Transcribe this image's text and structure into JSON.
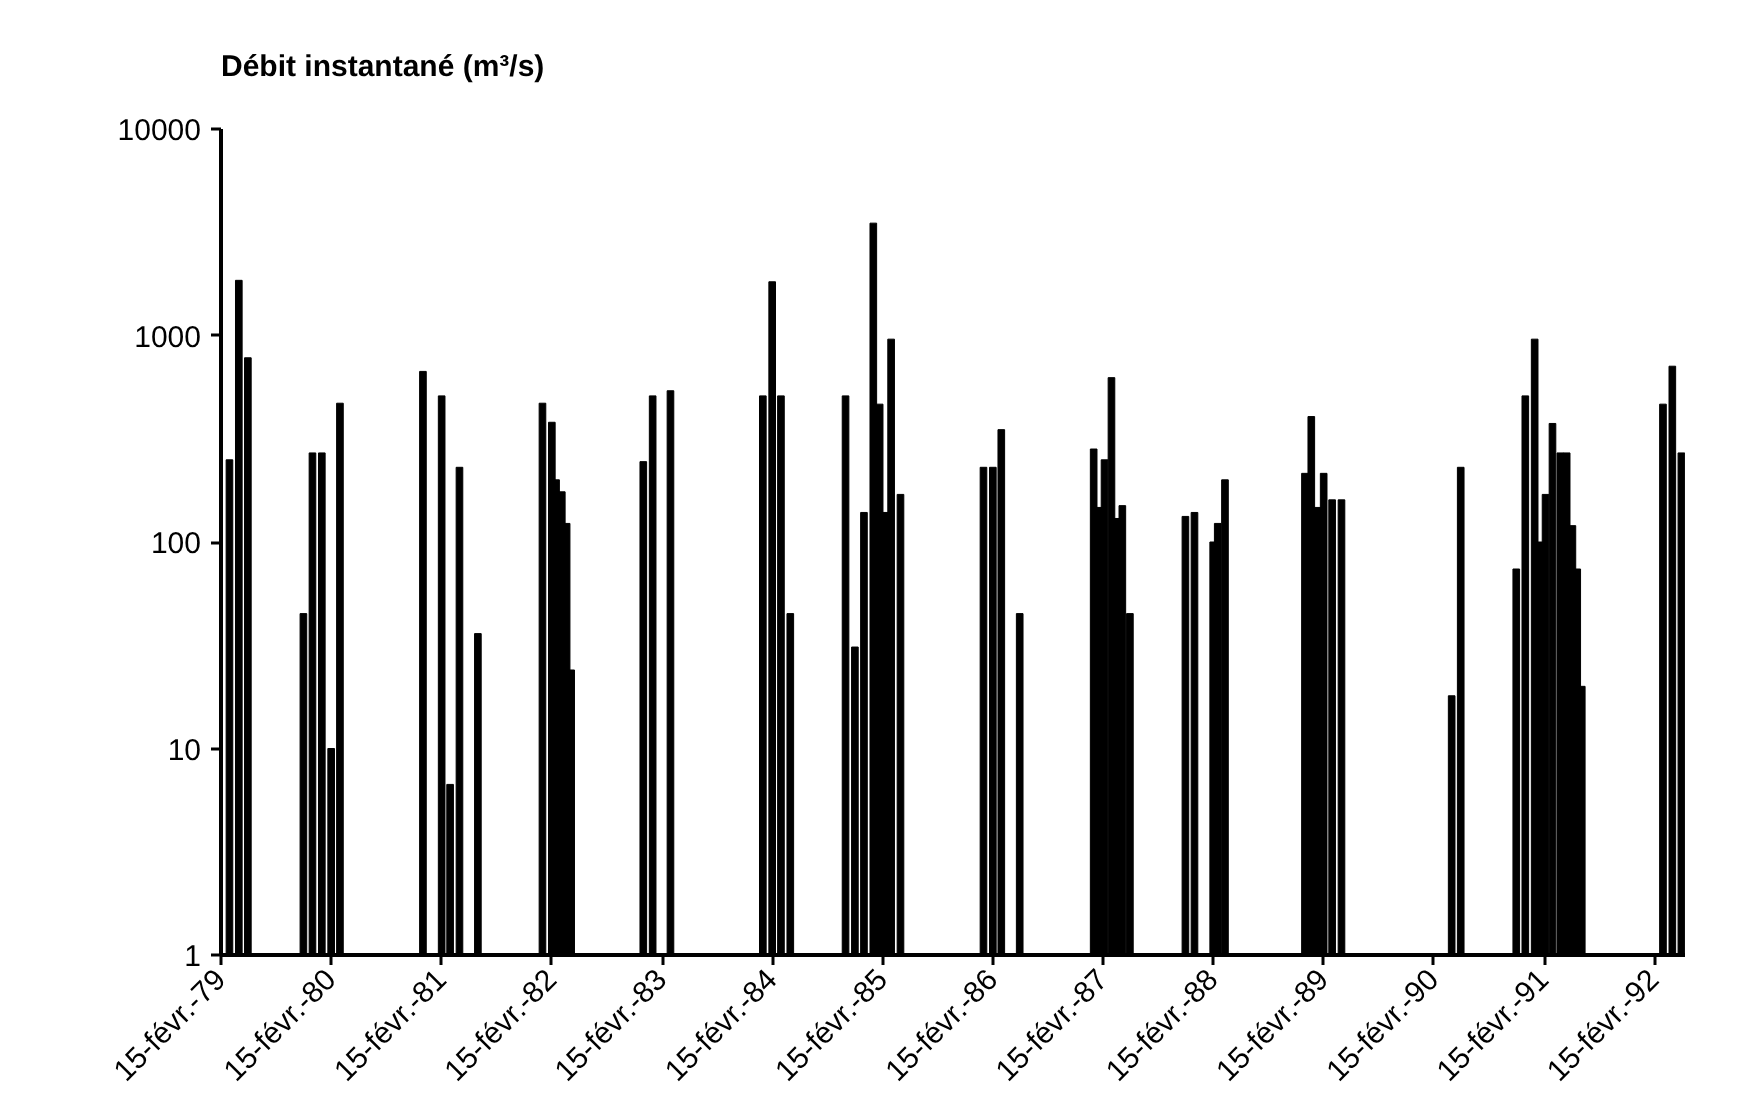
{
  "chart_data": {
    "type": "bar",
    "title": "Débit instantané (m³/s)",
    "log": true,
    "grid": false,
    "x": [
      "1979-03-15",
      "1979-04-15",
      "1979-05-15",
      "1979-11-15",
      "1979-12-15",
      "1980-01-15",
      "1980-02-15",
      "1980-03-15",
      "1980-12-15",
      "1981-02-15",
      "1981-03-15",
      "1981-04-15",
      "1981-06-15",
      "1982-01-15",
      "1982-02-15",
      "1982-03-01",
      "1982-03-20",
      "1982-04-05",
      "1982-04-20",
      "1982-12-15",
      "1983-01-15",
      "1983-03-15",
      "1984-01-15",
      "1984-02-15",
      "1984-03-15",
      "1984-04-15",
      "1984-10-15",
      "1984-11-15",
      "1984-12-15",
      "1985-01-15",
      "1985-02-05",
      "1985-02-25",
      "1985-03-15",
      "1985-04-15",
      "1986-01-15",
      "1986-02-15",
      "1986-03-15",
      "1986-05-15",
      "1987-01-15",
      "1987-02-01",
      "1987-02-20",
      "1987-03-15",
      "1987-04-01",
      "1987-04-20",
      "1987-05-15",
      "1987-11-15",
      "1987-12-15",
      "1988-02-15",
      "1988-03-01",
      "1988-03-25",
      "1988-12-15",
      "1989-01-05",
      "1989-01-25",
      "1989-02-15",
      "1989-03-15",
      "1989-04-15",
      "1990-04-15",
      "1990-05-15",
      "1990-11-15",
      "1990-12-15",
      "1991-01-15",
      "1991-02-01",
      "1991-02-20",
      "1991-03-15",
      "1991-04-10",
      "1991-05-01",
      "1991-05-20",
      "1991-06-05",
      "1991-06-20",
      "1992-03-15",
      "1992-04-15",
      "1992-05-15"
    ],
    "values": [
      250,
      1850,
      780,
      45,
      270,
      270,
      10,
      470,
      670,
      510,
      6.7,
      230,
      36,
      470,
      380,
      200,
      175,
      123,
      24,
      245,
      510,
      540,
      510,
      1820,
      510,
      45,
      510,
      31,
      139,
      3500,
      465,
      139,
      960,
      170,
      230,
      230,
      350,
      45,
      282,
      147,
      250,
      625,
      130,
      150,
      45,
      133,
      139,
      100,
      123,
      200,
      215,
      405,
      147,
      215,
      160,
      160,
      18,
      230,
      74,
      510,
      960,
      100,
      170,
      375,
      270,
      270,
      120,
      74,
      20,
      465,
      710,
      270
    ],
    "color": "#000000",
    "xlim": [
      "1979-02-15",
      "1992-05-27"
    ],
    "xticks": [
      {
        "value": "1979-02-15",
        "label": "15-févr.-79"
      },
      {
        "value": "1980-02-15",
        "label": "15-févr.-80"
      },
      {
        "value": "1981-02-15",
        "label": "15-févr.-81"
      },
      {
        "value": "1982-02-15",
        "label": "15-févr.-82"
      },
      {
        "value": "1983-02-15",
        "label": "15-févr.-83"
      },
      {
        "value": "1984-02-15",
        "label": "15-févr.-84"
      },
      {
        "value": "1985-02-15",
        "label": "15-févr.-85"
      },
      {
        "value": "1986-02-15",
        "label": "15-févr.-86"
      },
      {
        "value": "1987-02-15",
        "label": "15-févr.-87"
      },
      {
        "value": "1988-02-15",
        "label": "15-févr.-88"
      },
      {
        "value": "1989-02-15",
        "label": "15-févr.-89"
      },
      {
        "value": "1990-02-15",
        "label": "15-févr.-90"
      },
      {
        "value": "1991-02-15",
        "label": "15-févr.-91"
      },
      {
        "value": "1992-02-15",
        "label": "15-févr.-92"
      }
    ],
    "ylim": [
      1,
      10000
    ],
    "yticks": [
      1,
      10,
      100,
      1000,
      10000
    ]
  }
}
